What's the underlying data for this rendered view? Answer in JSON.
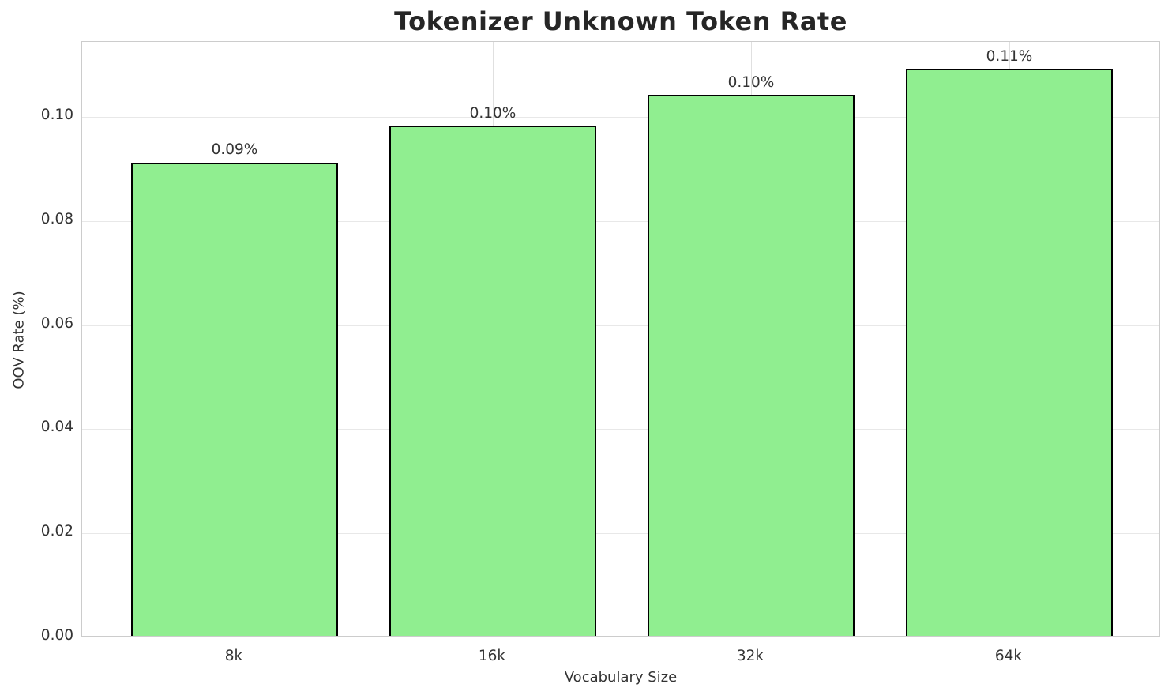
{
  "chart_data": {
    "type": "bar",
    "title": "Tokenizer Unknown Token Rate",
    "xlabel": "Vocabulary Size",
    "ylabel": "OOV Rate (%)",
    "categories": [
      "8k",
      "16k",
      "32k",
      "64k"
    ],
    "values": [
      0.091,
      0.098,
      0.104,
      0.109
    ],
    "bar_labels": [
      "0.09%",
      "0.10%",
      "0.10%",
      "0.11%"
    ],
    "ytick_values": [
      0.0,
      0.02,
      0.04,
      0.06,
      0.08,
      0.1
    ],
    "ytick_labels": [
      "0.00",
      "0.02",
      "0.04",
      "0.06",
      "0.08",
      "0.10"
    ],
    "ylim": [
      0,
      0.11445
    ],
    "grid": true,
    "legend": "none",
    "bar_color": "#90EE90",
    "bar_edge_color": "#000000",
    "grid_color": "#e8e8e8",
    "spine_color": "#cccccc",
    "text_color": "#333333",
    "title_color": "#262626"
  }
}
